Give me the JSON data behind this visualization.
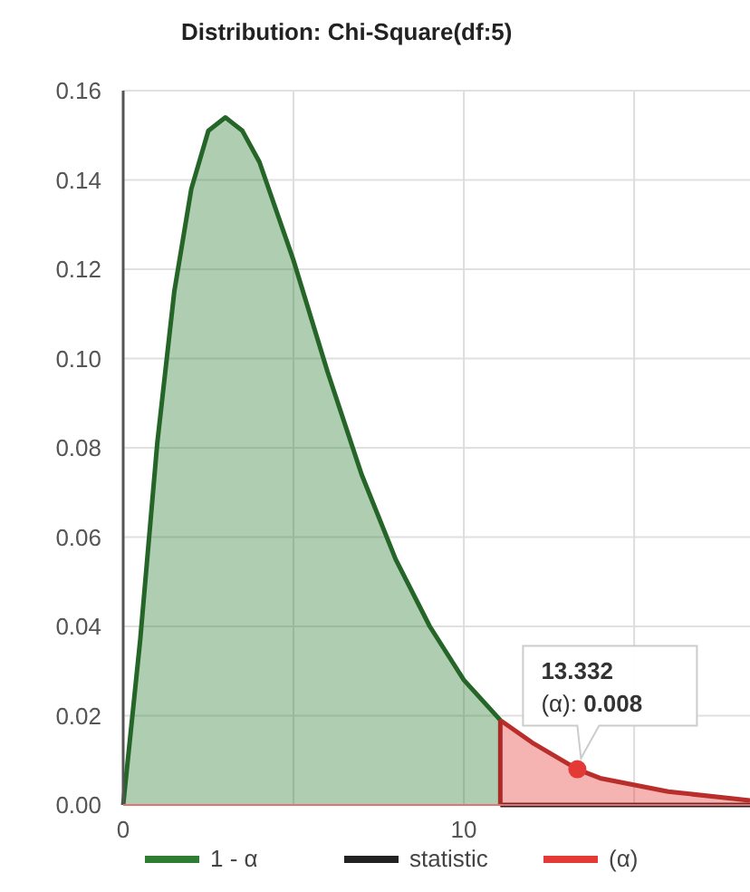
{
  "chart_data": {
    "type": "area",
    "title": "Distribution: Chi-Square(df:5)",
    "xlim": [
      0,
      18.4
    ],
    "xticks": [
      0,
      {
        "value": 5,
        "label": null
      },
      10,
      {
        "value": 15,
        "label": null
      }
    ],
    "ylim": [
      0,
      0.16
    ],
    "yticks": [
      {
        "value": 0,
        "label": "0.00"
      },
      {
        "value": 0.02,
        "label": "0.02"
      },
      {
        "value": 0.04,
        "label": "0.04"
      },
      {
        "value": 0.06,
        "label": "0.06"
      },
      {
        "value": 0.08,
        "label": "0.08"
      },
      {
        "value": 0.1,
        "label": "0.10"
      },
      {
        "value": 0.12,
        "label": "0.12"
      },
      {
        "value": 0.14,
        "label": "0.14"
      },
      {
        "value": 0.16,
        "label": "0.16"
      }
    ],
    "grid": true,
    "legend": "bottom",
    "series": [
      {
        "name": "1 - α",
        "color": "#2e7d32",
        "x": [
          0,
          0.5,
          1,
          1.5,
          2,
          2.5,
          3,
          3.5,
          4,
          5,
          6,
          7,
          8,
          9,
          10,
          11.07
        ],
        "values": [
          0,
          0.037,
          0.081,
          0.115,
          0.138,
          0.151,
          0.154,
          0.151,
          0.144,
          0.122,
          0.097,
          0.074,
          0.055,
          0.04,
          0.028,
          0.019
        ]
      },
      {
        "name": "statistic",
        "type": "line",
        "color": "#222222",
        "x": [
          11.07,
          18.4
        ],
        "values": [
          0,
          0
        ]
      },
      {
        "name": "(α)",
        "color": "#e53935",
        "x": [
          11.07,
          12,
          13.332,
          14,
          16,
          18.4
        ],
        "values": [
          0.019,
          0.014,
          0.008,
          0.006,
          0.003,
          0.001
        ]
      },
      {
        "type": "scatter",
        "color": "#e53935",
        "marker": "circle",
        "x": [
          13.332
        ],
        "values": [
          0.008
        ]
      }
    ],
    "ref_lines": [
      {
        "axis": "x",
        "value": 11.07,
        "color": "#ac2b28"
      }
    ],
    "annotations": [
      {
        "text": "13.332\n(α): 0.008",
        "x": 13.332,
        "y": 0.008
      }
    ]
  }
}
